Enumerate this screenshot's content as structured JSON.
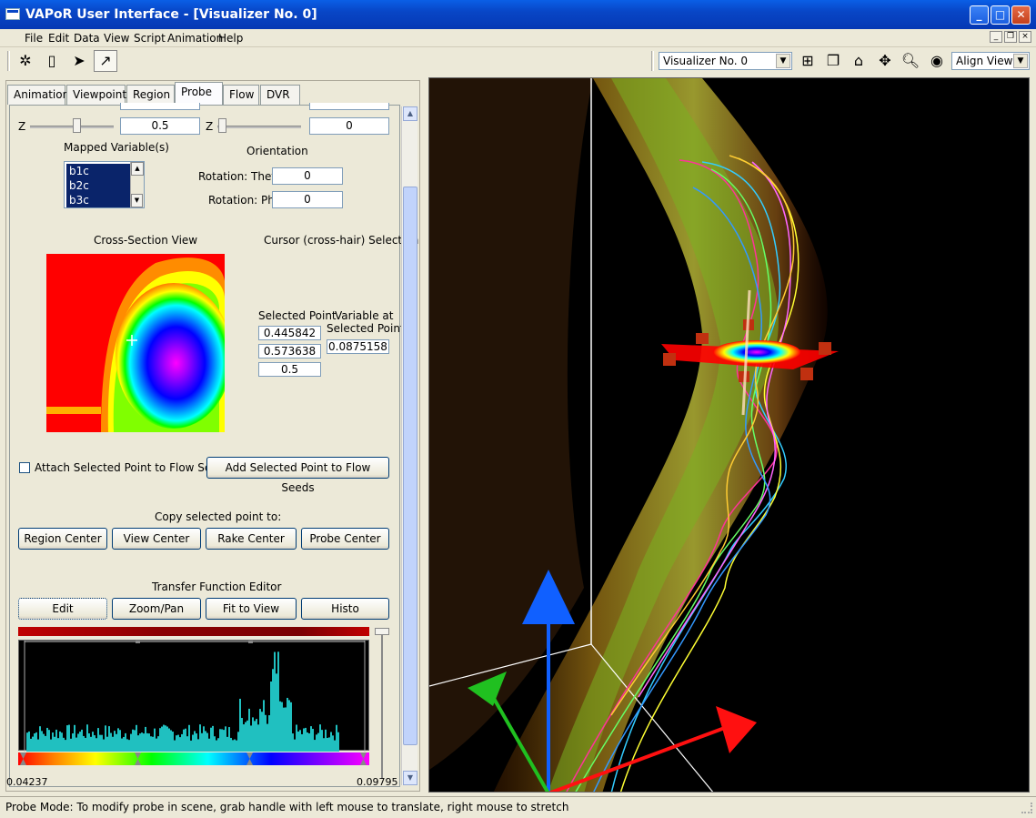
{
  "window": {
    "title": "VAPoR User Interface - [Visualizer No. 0]"
  },
  "menu": [
    "File",
    "Edit",
    "Data",
    "View",
    "Script",
    "Animation",
    "Help"
  ],
  "toolbar": {
    "visualizer_select": "Visualizer No. 0",
    "align_view_select": "Align View"
  },
  "tabs": [
    "Animation",
    "Viewpoint",
    "Region",
    "Probe",
    "Flow",
    "DVR"
  ],
  "active_tab": "Probe",
  "probe": {
    "z_label_left": "Z",
    "z_value_left": "0.5",
    "z_label_right": "Z",
    "z_value_right": "0",
    "mapped_variables_label": "Mapped Variable(s)",
    "mapped_variables": [
      "b1c",
      "b2c",
      "b3c"
    ],
    "orientation_label": "Orientation",
    "rotation_theta_label": "Rotation: Theta",
    "rotation_theta": "0",
    "rotation_phi_label": "Rotation: Phi",
    "rotation_phi": "0",
    "cross_section_label": "Cross-Section View",
    "cursor_label": "Cursor (cross-hair) Selection",
    "selected_point_label": "Selected Point",
    "selected_point": [
      "0.445842",
      "0.573638",
      "0.5"
    ],
    "variable_at_label_1": "Variable at",
    "variable_at_label_2": "Selected Point",
    "variable_value": "0.0875158",
    "attach_checkbox_label": "Attach Selected Point to Flow Seed",
    "add_seed_button": "Add Selected Point to Flow Seeds",
    "copy_label": "Copy selected point to:",
    "copy_buttons": [
      "Region Center",
      "View Center",
      "Rake Center",
      "Probe Center"
    ],
    "tf_editor_label": "Transfer Function Editor",
    "tf_buttons": [
      "Edit",
      "Zoom/Pan",
      "Fit to View",
      "Histo"
    ],
    "tf_min": "0.04237",
    "tf_max": "0.09795"
  },
  "status": "Probe Mode:  To modify probe in scene, grab handle with left mouse to translate, right mouse to stretch"
}
